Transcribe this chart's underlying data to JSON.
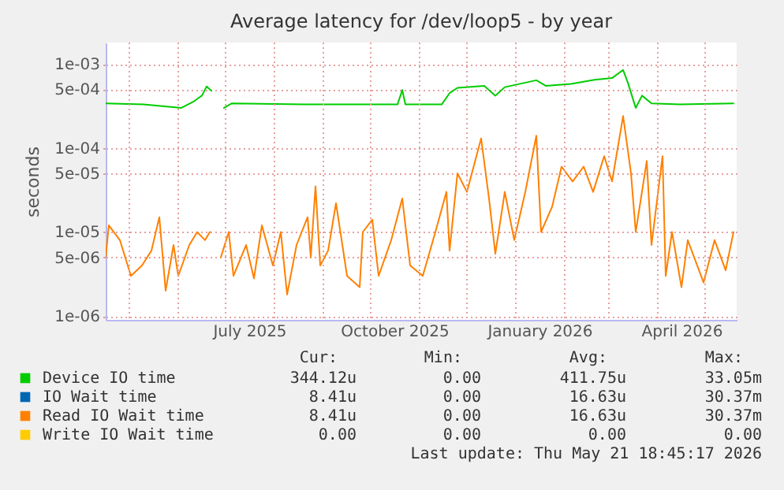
{
  "chart_data": {
    "type": "line",
    "title": "Average latency for /dev/loop5 - by year",
    "ylabel": "seconds",
    "log": "y",
    "grid": true,
    "legend": "bottom",
    "line_style": "solid",
    "marker": "none",
    "xlim": [
      "2025-04-16",
      "2026-05-21"
    ],
    "ylim": [
      9e-07,
      0.0018
    ],
    "xticks": [
      {
        "value": "2025-05-01",
        "label": null
      },
      {
        "value": "2025-06-01",
        "label": null
      },
      {
        "value": "2025-07-01",
        "label": null
      },
      {
        "value": "2025-07-16",
        "label": "July 2025"
      },
      {
        "value": "2025-08-01",
        "label": null
      },
      {
        "value": "2025-09-01",
        "label": null
      },
      {
        "value": "2025-10-01",
        "label": null
      },
      {
        "value": "2025-10-16",
        "label": "October 2025"
      },
      {
        "value": "2025-11-01",
        "label": null
      },
      {
        "value": "2025-12-01",
        "label": null
      },
      {
        "value": "2026-01-01",
        "label": null
      },
      {
        "value": "2026-01-16",
        "label": "January 2026"
      },
      {
        "value": "2026-02-01",
        "label": null
      },
      {
        "value": "2026-03-01",
        "label": null
      },
      {
        "value": "2026-04-01",
        "label": null
      },
      {
        "value": "2026-04-16",
        "label": "April 2026"
      },
      {
        "value": "2026-05-01",
        "label": null
      }
    ],
    "yticks": [
      {
        "value": 1e-06,
        "label": "1e-06"
      },
      {
        "value": 5e-06,
        "label": "5e-06"
      },
      {
        "value": 1e-05,
        "label": "1e-05"
      },
      {
        "value": 5e-05,
        "label": "5e-05"
      },
      {
        "value": 0.0001,
        "label": "1e-04"
      },
      {
        "value": 0.0005,
        "label": "5e-04"
      },
      {
        "value": 0.001,
        "label": "1e-03"
      }
    ],
    "series": [
      {
        "name": "Device IO time",
        "color": "#00cc00",
        "x": [
          "2025-04-16",
          "2025-05-10",
          "2025-06-03",
          "2025-06-11",
          "2025-06-16",
          "2025-06-19",
          "2025-06-22",
          "2025-06-24",
          "2025-06-30",
          "2025-07-05",
          "2025-08-20",
          "2025-10-18",
          "2025-10-21",
          "2025-10-23",
          "2025-11-15",
          "2025-11-20",
          "2025-11-25",
          "2025-12-12",
          "2025-12-19",
          "2025-12-25",
          "2026-01-14",
          "2026-01-20",
          "2026-02-05",
          "2026-02-20",
          "2026-03-03",
          "2026-03-10",
          "2026-03-13",
          "2026-03-18",
          "2026-03-22",
          "2026-03-28",
          "2026-04-15",
          "2026-05-19"
        ],
        "values": [
          0.00034,
          0.00033,
          0.0003,
          0.00036,
          0.00042,
          0.00054,
          0.00048,
          null,
          0.0003,
          0.00034,
          0.00033,
          0.00033,
          0.00049,
          0.00033,
          0.00033,
          0.00045,
          0.00052,
          0.00055,
          0.00042,
          0.00053,
          0.00064,
          0.00055,
          0.00058,
          0.00065,
          0.00068,
          0.00085,
          0.0006,
          0.0003,
          0.00042,
          0.00034,
          0.00033,
          0.00034
        ]
      },
      {
        "name": "IO Wait time",
        "color": "#0066b3"
      },
      {
        "name": "Read IO Wait time",
        "color": "#ff8000",
        "x": [
          "2025-04-16",
          "2025-04-18",
          "2025-04-25",
          "2025-05-02",
          "2025-05-09",
          "2025-05-15",
          "2025-05-20",
          "2025-05-24",
          "2025-05-29",
          "2025-06-01",
          "2025-06-08",
          "2025-06-13",
          "2025-06-18",
          "2025-06-21",
          "2025-06-24",
          "2025-06-28",
          "2025-07-03",
          "2025-07-06",
          "2025-07-14",
          "2025-07-19",
          "2025-07-24",
          "2025-07-31",
          "2025-08-05",
          "2025-08-09",
          "2025-08-15",
          "2025-08-22",
          "2025-08-24",
          "2025-08-27",
          "2025-08-30",
          "2025-09-04",
          "2025-09-09",
          "2025-09-16",
          "2025-09-24",
          "2025-09-26",
          "2025-10-02",
          "2025-10-06",
          "2025-10-14",
          "2025-10-21",
          "2025-10-26",
          "2025-11-03",
          "2025-11-11",
          "2025-11-18",
          "2025-11-20",
          "2025-11-25",
          "2025-12-01",
          "2025-12-10",
          "2025-12-15",
          "2025-12-19",
          "2025-12-25",
          "2025-12-31",
          "2026-01-07",
          "2026-01-14",
          "2026-01-17",
          "2026-01-24",
          "2026-01-30",
          "2026-02-06",
          "2026-02-13",
          "2026-02-19",
          "2026-02-26",
          "2026-03-03",
          "2026-03-10",
          "2026-03-15",
          "2026-03-18",
          "2026-03-25",
          "2026-03-28",
          "2026-04-04",
          "2026-04-06",
          "2026-04-10",
          "2026-04-16",
          "2026-04-20",
          "2026-04-30",
          "2026-05-07",
          "2026-05-14",
          "2026-05-19"
        ],
        "values": [
          5e-06,
          1.2e-05,
          8e-06,
          3e-06,
          4e-06,
          6e-06,
          1.5e-05,
          2e-06,
          7e-06,
          3e-06,
          7e-06,
          1e-05,
          8e-06,
          1e-05,
          null,
          5e-06,
          1e-05,
          3e-06,
          7e-06,
          2.8e-06,
          1.2e-05,
          4e-06,
          1e-05,
          1.8e-06,
          7e-06,
          1.5e-05,
          5e-06,
          3.5e-05,
          4e-06,
          6e-06,
          2.2e-05,
          3e-06,
          2.2e-06,
          1e-05,
          1.4e-05,
          3e-06,
          8e-06,
          2.5e-05,
          4e-06,
          3e-06,
          1e-05,
          3e-05,
          6e-06,
          5e-05,
          3e-05,
          0.00013,
          2.5e-05,
          5.5e-06,
          3e-05,
          8e-06,
          3e-05,
          0.00014,
          1e-05,
          2e-05,
          6e-05,
          4e-05,
          6e-05,
          3e-05,
          8e-05,
          4e-05,
          0.00024,
          5e-05,
          1e-05,
          7e-05,
          7e-06,
          8e-05,
          3e-06,
          1e-05,
          2.2e-06,
          8e-06,
          2.5e-06,
          8e-06,
          3.5e-06,
          1e-05
        ]
      },
      {
        "name": "Write IO Wait time",
        "color": "#ffcc00"
      }
    ],
    "annotations": [
      "Cur:",
      "Min:",
      "Avg:",
      "Max:",
      "344.12u",
      "0.00",
      "411.75u",
      "33.05m",
      "8.41u",
      "0.00",
      "16.63u",
      "30.37m",
      "8.41u",
      "0.00",
      "16.63u",
      "30.37m",
      "0.00",
      "0.00",
      "0.00",
      "0.00",
      "Last update: Thu May 21 18:45:17 2026"
    ]
  }
}
